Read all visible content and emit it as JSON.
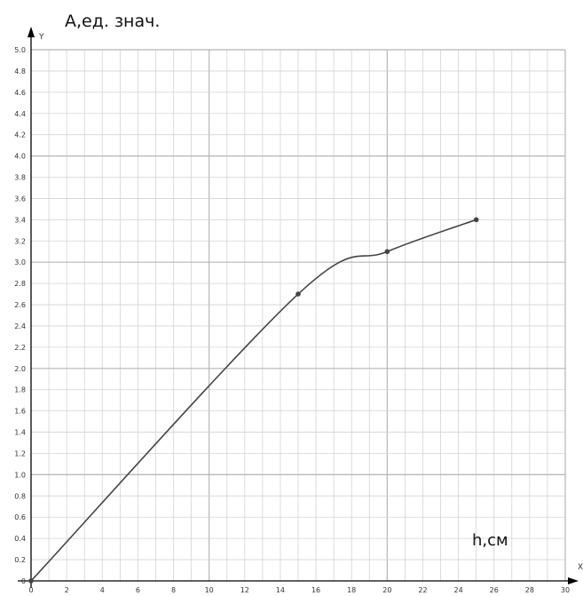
{
  "chart_data": {
    "type": "line",
    "ylabel": "А,ед. знач.",
    "xlabel": "h,см",
    "x_axis_letter": "X",
    "y_axis_letter": "Y",
    "xlim": [
      0,
      30
    ],
    "ylim": [
      0,
      5
    ],
    "x_ticks": [
      "0",
      "2",
      "4",
      "6",
      "8",
      "10",
      "12",
      "14",
      "16",
      "18",
      "20",
      "22",
      "24",
      "26",
      "28",
      "30"
    ],
    "y_ticks": [
      "0",
      "0.2",
      "0.4",
      "0.6",
      "0.8",
      "1.0",
      "1.2",
      "1.4",
      "1.6",
      "1.8",
      "2.0",
      "2.2",
      "2.4",
      "2.6",
      "2.8",
      "3.0",
      "3.2",
      "3.4",
      "3.6",
      "3.8",
      "4.0",
      "4.2",
      "4.4",
      "4.6",
      "4.8",
      "5.0"
    ],
    "grid": true,
    "series": [
      {
        "points": [
          {
            "x": 0,
            "y": 0
          },
          {
            "x": 15,
            "y": 2.7
          },
          {
            "x": 20,
            "y": 3.1
          },
          {
            "x": 25,
            "y": 3.4
          }
        ]
      }
    ],
    "colors": {
      "line": "#444444",
      "grid": "#d3d3d3",
      "grid_major": "#b5b5b5",
      "axis": "#000000"
    }
  }
}
